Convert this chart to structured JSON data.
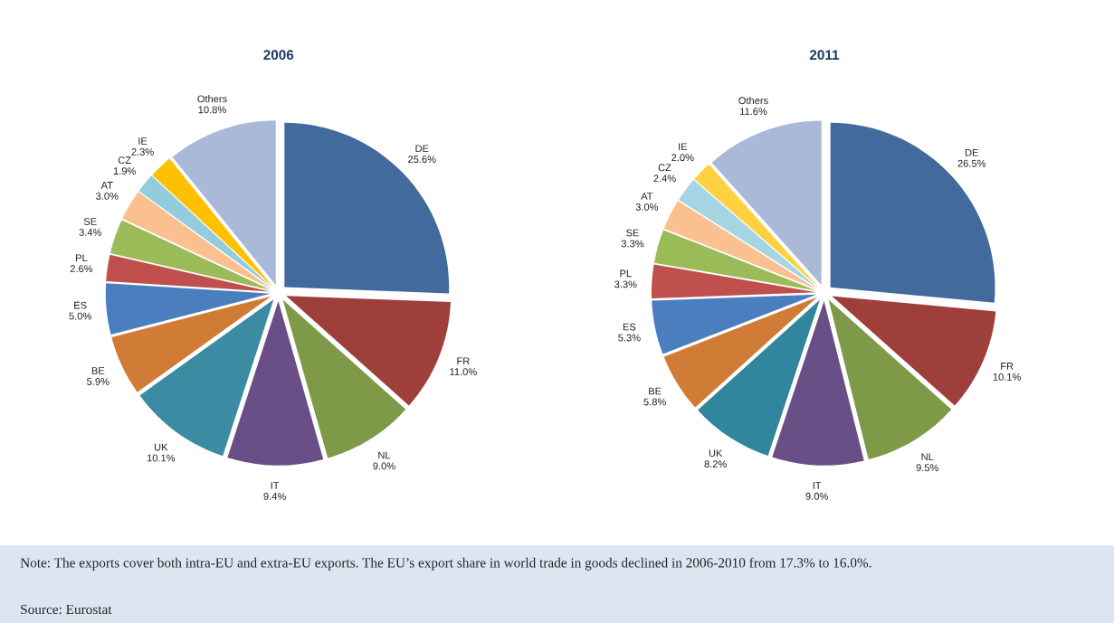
{
  "chart_data": [
    {
      "type": "pie",
      "title": "2006",
      "categories": [
        "DE",
        "FR",
        "NL",
        "IT",
        "UK",
        "BE",
        "ES",
        "PL",
        "SE",
        "AT",
        "CZ",
        "IE",
        "Others"
      ],
      "values": [
        25.6,
        11.0,
        9.0,
        9.4,
        10.1,
        5.9,
        5.0,
        2.6,
        3.4,
        3.0,
        1.9,
        2.3,
        10.8
      ],
      "value_labels": [
        "25.6%",
        "11.0%",
        "9.0%",
        "9.4%",
        "10.1%",
        "5.9%",
        "5.0%",
        "2.6%",
        "3.4%",
        "3.0%",
        "1.9%",
        "2.3%",
        "10.8%"
      ],
      "colors": [
        "#426a9c",
        "#9e3f3c",
        "#7e9a48",
        "#6a4f87",
        "#3b8ba3",
        "#d07c37",
        "#4a7ebf",
        "#c0504d",
        "#9bbb59",
        "#fac090",
        "#93cddd",
        "#ffc000",
        "#a9b9d7"
      ]
    },
    {
      "type": "pie",
      "title": "2011",
      "categories": [
        "DE",
        "FR",
        "NL",
        "IT",
        "UK",
        "BE",
        "ES",
        "PL",
        "SE",
        "AT",
        "CZ",
        "IE",
        "Others"
      ],
      "values": [
        26.5,
        10.1,
        9.5,
        9.0,
        8.2,
        5.8,
        5.3,
        3.3,
        3.3,
        3.0,
        2.4,
        2.0,
        11.6
      ],
      "value_labels": [
        "26.5%",
        "10.1%",
        "9.5%",
        "9.0%",
        "8.2%",
        "5.8%",
        "5.3%",
        "3.3%",
        "3.3%",
        "3.0%",
        "2.4%",
        "2.0%",
        "11.6%"
      ],
      "colors": [
        "#426a9c",
        "#9e3f3c",
        "#7e9a48",
        "#6a4f87",
        "#31859c",
        "#d07c37",
        "#4a7ebf",
        "#c0504d",
        "#9bbb59",
        "#fac090",
        "#a5d5e2",
        "#ffd040",
        "#a9b9d7"
      ],
      "annotations": [
        "Note: The exports cover both intra-EU and extra-EU exports. The EU’s export share in world trade in goods declined in 2006-2010 from 17.3% to 16.0%.",
        "Source: Eurostat"
      ]
    }
  ]
}
